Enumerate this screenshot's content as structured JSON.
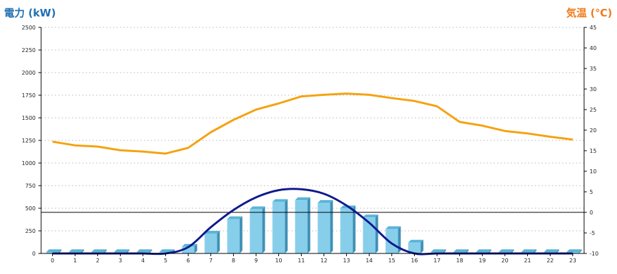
{
  "chart_data": {
    "type": "bar",
    "left_axis_title": "電力 (kW)",
    "right_axis_title": "気温 (℃)",
    "categories": [
      "0",
      "1",
      "2",
      "3",
      "4",
      "5",
      "6",
      "7",
      "8",
      "9",
      "10",
      "11",
      "12",
      "13",
      "14",
      "15",
      "16",
      "17",
      "18",
      "19",
      "20",
      "21",
      "22",
      "23"
    ],
    "y_left": {
      "min": 0,
      "max": 2500,
      "ticks": [
        0,
        250,
        500,
        750,
        1000,
        1250,
        1500,
        1750,
        2000,
        2250,
        2500
      ]
    },
    "y_right": {
      "min": -10,
      "max": 45,
      "ticks": [
        -10,
        -5,
        0,
        5,
        10,
        15,
        20,
        25,
        30,
        35,
        40,
        45
      ]
    },
    "grid": true,
    "series": [
      {
        "kind": "bar",
        "axis": "left",
        "color": "#87ceeb",
        "values": [
          15,
          15,
          15,
          15,
          15,
          15,
          75,
          220,
          380,
          490,
          570,
          590,
          560,
          500,
          400,
          270,
          120,
          15,
          15,
          15,
          15,
          15,
          15,
          15
        ]
      },
      {
        "kind": "line",
        "axis": "left",
        "color": "#0d1a8c",
        "values": [
          0,
          0,
          0,
          0,
          0,
          0,
          70,
          290,
          480,
          620,
          700,
          710,
          660,
          530,
          340,
          110,
          0,
          0,
          0,
          0,
          0,
          0,
          0,
          0
        ]
      },
      {
        "kind": "line",
        "axis": "right",
        "color": "#f5a20f",
        "values": [
          17.2,
          16.3,
          16.0,
          15.1,
          14.8,
          14.3,
          15.7,
          19.5,
          22.5,
          25.0,
          26.5,
          28.2,
          28.6,
          28.9,
          28.6,
          27.8,
          27.1,
          25.8,
          22.0,
          21.1,
          19.8,
          19.2,
          18.4,
          17.7
        ]
      }
    ],
    "reference_line": {
      "axis": "right",
      "value": 0,
      "color": "#000000"
    }
  }
}
